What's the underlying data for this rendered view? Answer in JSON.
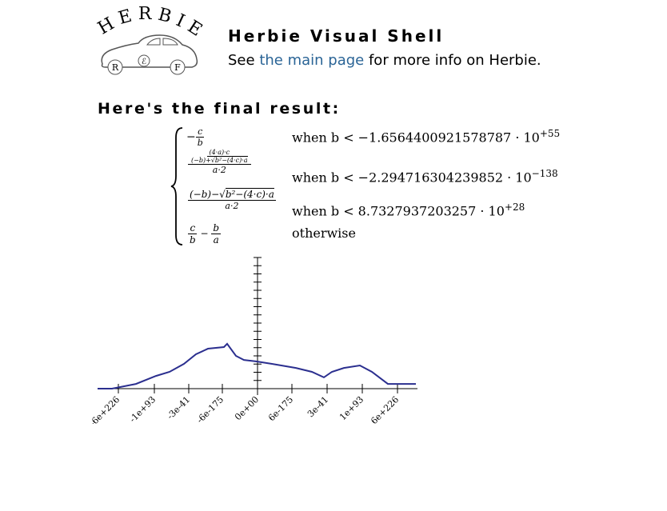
{
  "logo": {
    "text": "HERBIE",
    "badges": [
      "R",
      "ℰ",
      "F"
    ]
  },
  "header": {
    "title": "Herbie Visual Shell",
    "intro_before": "See",
    "link": "the main page",
    "intro_after": "for more info on Herbie."
  },
  "heading": "Here's the final result:",
  "result": {
    "cases": [
      {
        "sign": "−",
        "num": "c",
        "den": "b",
        "condition": "when b < −1.6564400921578787 · 10",
        "exponent": "+55"
      },
      {
        "num_num": "(4·a)·c",
        "num_den_pre": "(−b)+",
        "num_den_root": "b²−(4·c)·a",
        "den": "a·2",
        "condition": "when b < −2.294716304239852 · 10",
        "exponent": "−138"
      },
      {
        "num_pre": "(−b)−",
        "num_root": "b²−(4·c)·a",
        "den": "a·2",
        "condition": "when b < 8.7327937203257 · 10",
        "exponent": "+28"
      },
      {
        "num1": "c",
        "den1": "b",
        "op": "−",
        "num2": "b",
        "den2": "a",
        "condition": "otherwise"
      }
    ]
  },
  "chart_data": {
    "type": "line",
    "color": "#2b2f8f",
    "x": [
      0,
      18,
      48,
      73,
      90,
      108,
      123,
      138,
      158,
      162,
      173,
      183,
      198,
      218,
      248,
      268,
      283,
      293,
      308,
      328,
      343,
      363,
      398
    ],
    "values": [
      0,
      0,
      2.3,
      6.2,
      8.2,
      12.1,
      16.8,
      19.5,
      20.3,
      21.9,
      16,
      14,
      13.3,
      12.1,
      10.1,
      8.2,
      5.5,
      8.2,
      10.1,
      11.3,
      8.2,
      2.3,
      2.3
    ],
    "xlim": [
      0,
      400
    ],
    "xticks": [
      {
        "value": 26,
        "label": "-6e+226"
      },
      {
        "value": 71,
        "label": "-1e+93"
      },
      {
        "value": 114,
        "label": "-3e-41"
      },
      {
        "value": 156,
        "label": "-6e-175"
      },
      {
        "value": 200,
        "label": "0e+00"
      },
      {
        "value": 243,
        "label": "6e-175"
      },
      {
        "value": 287,
        "label": "3e-41"
      },
      {
        "value": 331,
        "label": "1e+93"
      },
      {
        "value": 375,
        "label": "6e+226"
      }
    ],
    "ylim": [
      0,
      64
    ],
    "yticks": [
      0,
      4,
      8,
      12,
      16,
      20,
      24,
      28,
      32,
      36,
      40,
      44,
      48,
      52,
      56,
      60,
      64
    ]
  }
}
